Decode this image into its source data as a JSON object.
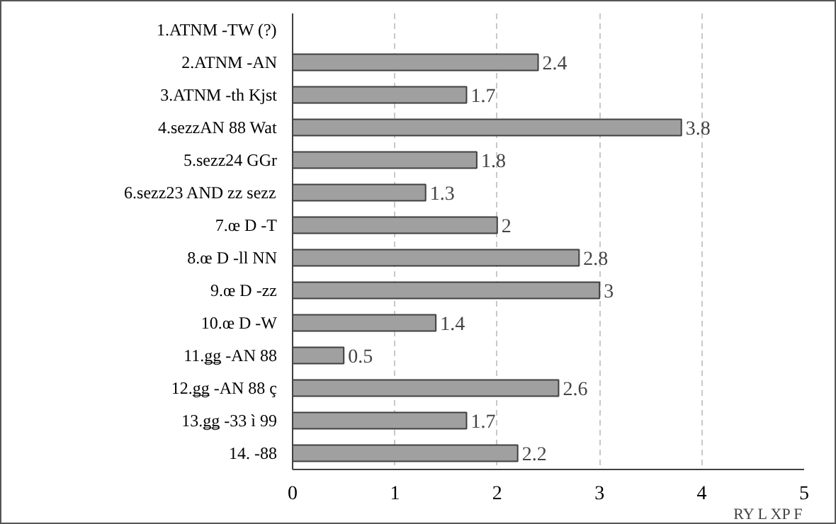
{
  "chart_data": {
    "type": "bar",
    "orientation": "horizontal",
    "xlabel": "RY L XP F",
    "categories": [
      "1.ATNM -TW (?)",
      "2.ATNM -AN",
      "3.ATNM -th Kjst",
      "4.sezzAN 88 Wat",
      "5.sezz24 GGr",
      "6.sezz23 AND zz sezz",
      "7.œ D -T",
      "8.œ D -ll NN",
      "9.œ D -zz",
      "10.œ D -W",
      "11.ǥǥ -AN 88",
      "12.ǥǥ -AN 88 ç",
      "13.ǥǥ -33 ì 99",
      "14. -88"
    ],
    "values": [
      null,
      2.4,
      1.7,
      3.8,
      1.8,
      1.3,
      2,
      2.8,
      3,
      1.4,
      0.5,
      2.6,
      1.7,
      2.2
    ],
    "color": "#a0a0a0",
    "data_labels": true,
    "xlim": [
      0,
      5
    ],
    "xticks": [
      0,
      1,
      2,
      3,
      4,
      5
    ],
    "grid": "x"
  }
}
